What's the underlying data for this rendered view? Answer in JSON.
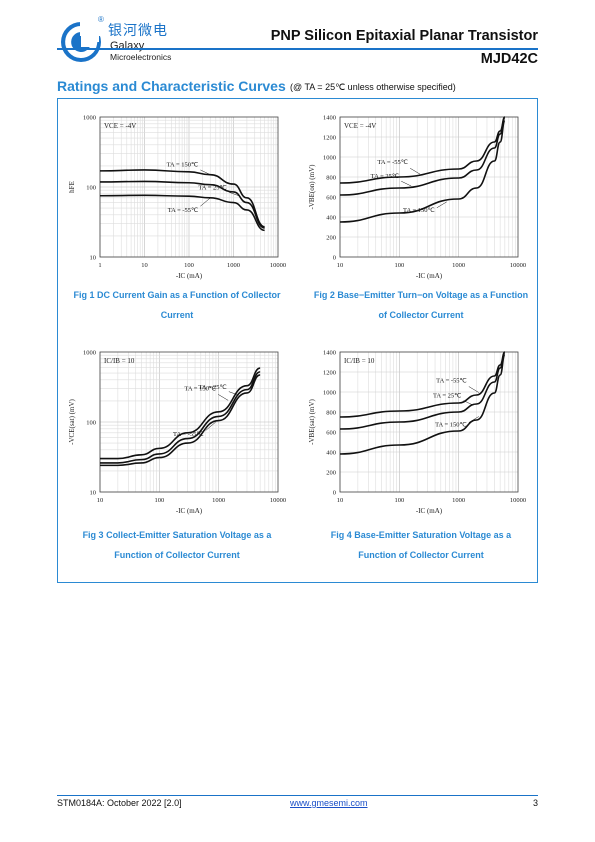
{
  "header": {
    "logo_cn": "银河微电",
    "logo_name": "Galaxy",
    "logo_sub": "Microelectronics",
    "logo_mark": "®",
    "title": "PNP Silicon Epitaxial Planar Transistor",
    "part": "MJD42C",
    "accent": "#1a73c8"
  },
  "section": {
    "title": "Ratings and Characteristic Curves",
    "note": "(@ TA = 25℃ unless otherwise specified)"
  },
  "figures": [
    {
      "caption_line1": "Fig 1    DC Current Gain as a Function of Collector",
      "caption_line2": "Current"
    },
    {
      "caption_line1": "Fig 2    Base−Emitter Turn−on Voltage as a Function",
      "caption_line2": "of Collector Current"
    },
    {
      "caption_line1": "Fig 3    Collect-Emitter Saturation Voltage as a",
      "caption_line2": "Function of Collector Current"
    },
    {
      "caption_line1": "Fig 4    Base-Emitter Saturation Voltage as a",
      "caption_line2": "Function of Collector Current"
    }
  ],
  "chart_data": [
    {
      "type": "line",
      "xscale": "log",
      "yscale": "log",
      "xlim": [
        1,
        10000
      ],
      "ylim": [
        10,
        1000
      ],
      "xticks": [
        "1",
        "10",
        "100",
        "1000",
        "10000"
      ],
      "yticks": [
        "1000",
        "100",
        "10"
      ],
      "xlabel": "-IC (mA)",
      "ylabel": "hFE",
      "condition": "VCE = -4V",
      "grid": true,
      "series": [
        {
          "name": "TA = 150℃",
          "x": [
            1,
            10,
            100,
            300,
            1000,
            2000,
            5000
          ],
          "y": [
            170,
            175,
            165,
            150,
            110,
            70,
            27
          ]
        },
        {
          "name": "TA = 25℃",
          "x": [
            1,
            10,
            100,
            300,
            1000,
            2000,
            5000
          ],
          "y": [
            118,
            120,
            115,
            108,
            85,
            60,
            26
          ]
        },
        {
          "name": "TA = -55℃",
          "x": [
            1,
            10,
            100,
            300,
            1000,
            2000,
            5000
          ],
          "y": [
            75,
            76,
            74,
            70,
            60,
            47,
            24
          ]
        }
      ]
    },
    {
      "type": "line",
      "xscale": "log",
      "yscale": "linear",
      "xlim": [
        10,
        10000
      ],
      "ylim": [
        0,
        1400
      ],
      "xticks": [
        "10",
        "100",
        "1000",
        "10000"
      ],
      "yticks": [
        "0",
        "200",
        "400",
        "600",
        "800",
        "1000",
        "1200",
        "1400"
      ],
      "xlabel": "-IC (mA)",
      "ylabel": "-VBE(on) (mV)",
      "condition": "VCE = -4V",
      "grid": true,
      "series": [
        {
          "name": "TA = -55℃",
          "x": [
            10,
            100,
            1000,
            2000,
            4000,
            5000,
            6000
          ],
          "y": [
            740,
            800,
            880,
            960,
            1150,
            1260,
            1400
          ]
        },
        {
          "name": "TA = 25℃",
          "x": [
            10,
            100,
            1000,
            2000,
            4000,
            5000,
            6000
          ],
          "y": [
            620,
            690,
            790,
            870,
            1090,
            1230,
            1390
          ]
        },
        {
          "name": "TA = 150℃",
          "x": [
            10,
            100,
            1000,
            2000,
            4000,
            5000,
            6000
          ],
          "y": [
            350,
            440,
            580,
            690,
            960,
            1150,
            1360
          ]
        }
      ]
    },
    {
      "type": "line",
      "xscale": "log",
      "yscale": "log",
      "xlim": [
        10,
        10000
      ],
      "ylim": [
        10,
        1000
      ],
      "xticks": [
        "10",
        "100",
        "1000",
        "10000"
      ],
      "yticks": [
        "1000",
        "100",
        "10"
      ],
      "xlabel": "-IC (mA)",
      "ylabel": "-VCE(sat) (mV)",
      "condition": "IC/IB = 10",
      "grid": true,
      "series": [
        {
          "name": "TA = 150℃",
          "x": [
            10,
            20,
            50,
            100,
            300,
            1000,
            3000,
            5000
          ],
          "y": [
            30,
            30,
            34,
            42,
            70,
            140,
            330,
            590
          ]
        },
        {
          "name": "TA = 25℃",
          "x": [
            10,
            20,
            50,
            100,
            300,
            1000,
            3000,
            5000
          ],
          "y": [
            26,
            26,
            29,
            35,
            58,
            120,
            290,
            520
          ]
        },
        {
          "name": "TA = -55℃",
          "x": [
            10,
            20,
            50,
            100,
            300,
            1000,
            3000,
            5000
          ],
          "y": [
            24,
            24,
            26,
            31,
            50,
            105,
            260,
            470
          ]
        }
      ]
    },
    {
      "type": "line",
      "xscale": "log",
      "yscale": "linear",
      "xlim": [
        10,
        10000
      ],
      "ylim": [
        0,
        1400
      ],
      "xticks": [
        "10",
        "100",
        "1000",
        "10000"
      ],
      "yticks": [
        "0",
        "200",
        "400",
        "600",
        "800",
        "1000",
        "1200",
        "1400"
      ],
      "xlabel": "-IC (mA)",
      "ylabel": "-VBE(sat) (mV)",
      "condition": "IC/IB = 10",
      "grid": true,
      "series": [
        {
          "name": "TA = -55℃",
          "x": [
            10,
            100,
            1000,
            2000,
            4000,
            5000,
            6000
          ],
          "y": [
            750,
            810,
            890,
            970,
            1160,
            1270,
            1400
          ]
        },
        {
          "name": "TA = 25℃",
          "x": [
            10,
            100,
            1000,
            2000,
            4000,
            5000,
            6000
          ],
          "y": [
            630,
            700,
            800,
            880,
            1100,
            1240,
            1390
          ]
        },
        {
          "name": "TA = 150℃",
          "x": [
            10,
            100,
            1000,
            2000,
            4000,
            5000,
            6000
          ],
          "y": [
            380,
            470,
            610,
            720,
            990,
            1170,
            1370
          ]
        }
      ]
    }
  ],
  "footer": {
    "doc_id": "STM0184A: October 2022 [2.0]",
    "url": "www.gmesemi.com",
    "page": "3"
  }
}
